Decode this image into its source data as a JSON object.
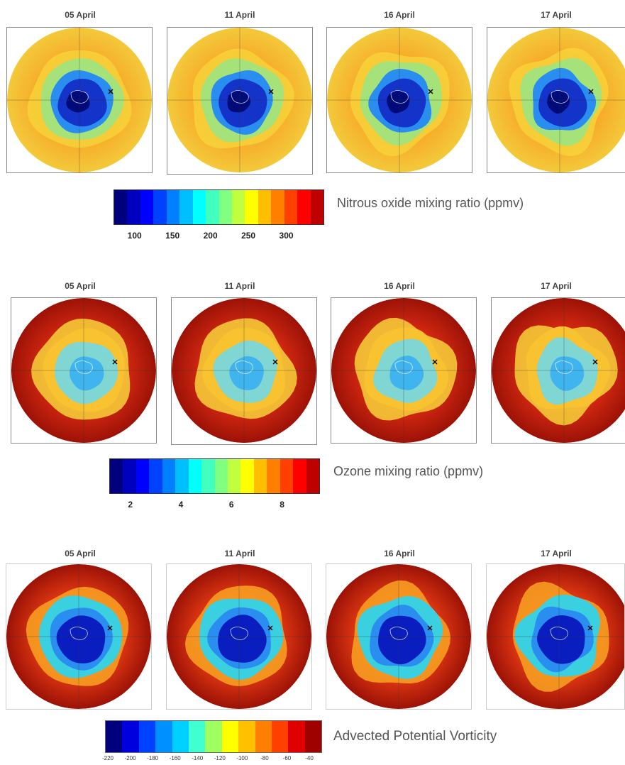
{
  "rows": [
    {
      "colorbar_label": "Nitrous oxide mixing ratio (ppmv)",
      "colorbar_ticks": [
        "100",
        "150",
        "200",
        "250",
        "300"
      ],
      "colormap": [
        "#00007f",
        "#0000bf",
        "#0000ff",
        "#0040ff",
        "#0080ff",
        "#00bfff",
        "#00ffff",
        "#40ffbf",
        "#80ff80",
        "#bfff40",
        "#ffff00",
        "#ffbf00",
        "#ff8000",
        "#ff4000",
        "#ff0000",
        "#bf0000"
      ],
      "outer": "#f7a928",
      "mid": "#a6e27a",
      "core": "#1433c8",
      "panels": [
        "05 April",
        "11 April",
        "16 April",
        "17 April"
      ]
    },
    {
      "colorbar_label": "Ozone mixing ratio (ppmv)",
      "colorbar_ticks": [
        "2",
        "4",
        "6",
        "8"
      ],
      "colormap": [
        "#00007f",
        "#0000bf",
        "#0000ff",
        "#0040ff",
        "#0080ff",
        "#00bfff",
        "#00ffff",
        "#40ffbf",
        "#80ff80",
        "#bfff40",
        "#ffff00",
        "#ffbf00",
        "#ff8000",
        "#ff4000",
        "#ff0000",
        "#bf0000"
      ],
      "outer": "#d72a12",
      "mid": "#f9c230",
      "core": "#3fb4ef",
      "panels": [
        "05 April",
        "11 April",
        "16 April",
        "17 April"
      ]
    },
    {
      "colorbar_label": "Advected Potential Vorticity",
      "colorbar_ticks": [
        "-220",
        "-200",
        "-180",
        "-160",
        "-140",
        "-120",
        "-100",
        "-80",
        "-60",
        "-40"
      ],
      "colormap": [
        "#00007f",
        "#0000df",
        "#0040ff",
        "#0090ff",
        "#00d0ff",
        "#40ffd0",
        "#a0ff60",
        "#ffff00",
        "#ffc000",
        "#ff8000",
        "#ff4000",
        "#e00000",
        "#9f0000"
      ],
      "outer": "#e53b14",
      "mid": "#3ad0e0",
      "core": "#0a1ec0",
      "panels": [
        "05 April",
        "11 April",
        "16 April",
        "17 April"
      ]
    }
  ]
}
